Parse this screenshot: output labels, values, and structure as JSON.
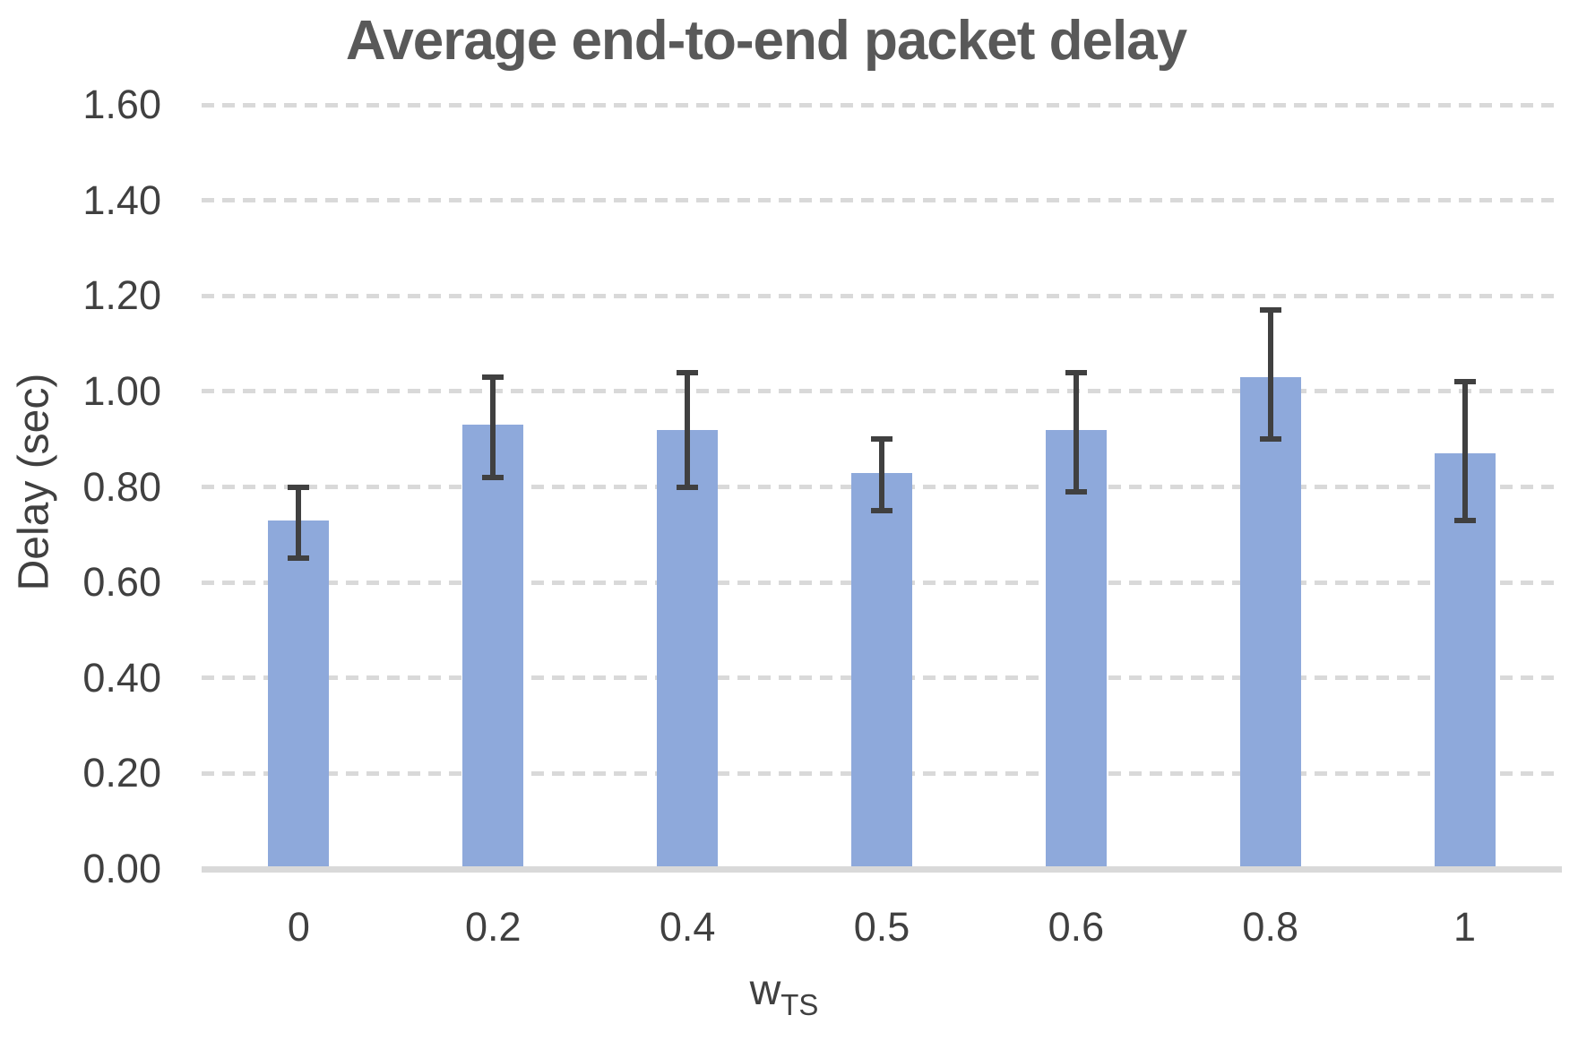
{
  "chart_data": {
    "type": "bar",
    "title": "Average end-to-end packet delay",
    "ylabel": "Delay (sec)",
    "xlabel_main": "w",
    "xlabel_sub": "TS",
    "categories": [
      "0",
      "0.2",
      "0.4",
      "0.5",
      "0.6",
      "0.8",
      "1"
    ],
    "series": [
      {
        "name": "Average end-to-end packet delay",
        "values": [
          0.73,
          0.93,
          0.92,
          0.83,
          0.92,
          1.03,
          0.87
        ],
        "error_top": [
          0.8,
          1.03,
          1.04,
          0.9,
          1.04,
          1.17,
          1.02
        ],
        "error_bottom": [
          0.65,
          0.82,
          0.8,
          0.75,
          0.79,
          0.9,
          0.73
        ]
      }
    ],
    "ylim": [
      0,
      1.6
    ],
    "ytick_step": 0.2,
    "ytick_decimals": 2,
    "grid": "horizontal-dashed",
    "legend": "none",
    "colors": {
      "bar_fill": "#8ea9db",
      "error_bar": "#404040",
      "gridline": "#d9d9d9",
      "baseline": "#d9d9d9",
      "title_text": "#595959",
      "tick_text": "#404040"
    }
  }
}
